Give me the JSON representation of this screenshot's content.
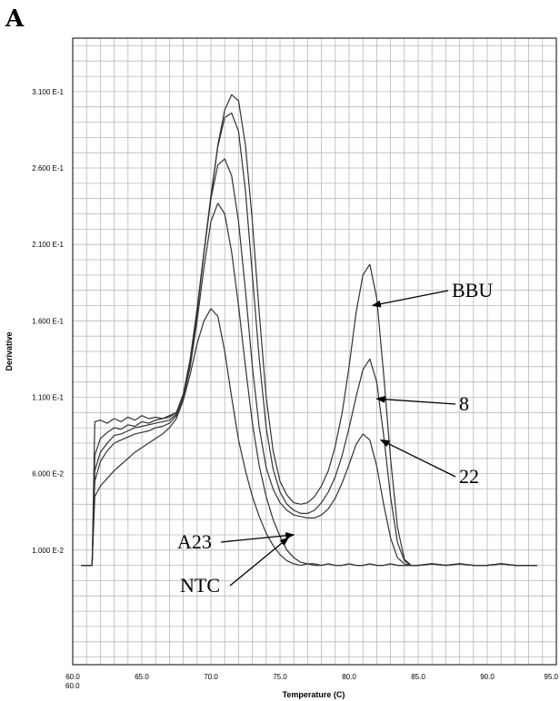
{
  "panel_letter": "A",
  "chart_data": {
    "type": "line",
    "xlabel": "Temperature (C)",
    "ylabel": "Derivative",
    "xlim": [
      60.0,
      95.0
    ],
    "ylim": [
      -0.065,
      0.345
    ],
    "x_ticks": [
      60,
      65,
      70,
      75,
      80,
      85,
      90,
      95
    ],
    "x_tick_labels": [
      "60.0",
      "65.0",
      "70.0",
      "75.0",
      "80.0",
      "85.0",
      "90.0",
      "95.0"
    ],
    "x_min_label": "60.0",
    "y_ticks": [
      0.01,
      0.06,
      0.11,
      0.16,
      0.21,
      0.26,
      0.31
    ],
    "y_tick_labels": [
      "1.000 E-2",
      "6.000 E-2",
      "1.100 E-1",
      "1.600 E-1",
      "2.100 E-1",
      "2.600 E-1",
      "3.100 E-1"
    ],
    "grid": true,
    "x": [
      60.6,
      61.4,
      61.6,
      62.0,
      62.5,
      63.0,
      63.5,
      64.0,
      64.5,
      65.0,
      65.5,
      66.0,
      66.5,
      67.0,
      67.5,
      68.0,
      68.5,
      69.0,
      69.5,
      70.0,
      70.5,
      71.0,
      71.5,
      72.0,
      72.5,
      73.0,
      73.5,
      74.0,
      74.5,
      75.0,
      75.5,
      76.0,
      76.5,
      77.0,
      77.5,
      78.0,
      78.5,
      79.0,
      79.5,
      80.0,
      80.5,
      81.0,
      81.5,
      82.0,
      82.5,
      83.0,
      83.5,
      84.0,
      84.5,
      85.0,
      86.0,
      87.0,
      88.0,
      89.0,
      90.0,
      91.0,
      92.0,
      93.2
    ],
    "series": [
      {
        "values": [
          0.0,
          0.0,
          0.094,
          0.095,
          0.093,
          0.096,
          0.094,
          0.097,
          0.095,
          0.098,
          0.096,
          0.097,
          0.096,
          0.098,
          0.1,
          0.11,
          0.13,
          0.165,
          0.205,
          0.24,
          0.275,
          0.298,
          0.308,
          0.304,
          0.275,
          0.225,
          0.165,
          0.11,
          0.075,
          0.055,
          0.046,
          0.041,
          0.04,
          0.041,
          0.045,
          0.052,
          0.062,
          0.078,
          0.1,
          0.13,
          0.165,
          0.19,
          0.197,
          0.175,
          0.125,
          0.07,
          0.025,
          0.004,
          0.0,
          0.0,
          0.001,
          0.0,
          0.001,
          0.0,
          0.0,
          0.001,
          0.0,
          0.0
        ]
      },
      {
        "values": [
          0.0,
          0.0,
          0.072,
          0.083,
          0.087,
          0.09,
          0.089,
          0.092,
          0.091,
          0.094,
          0.093,
          0.095,
          0.096,
          0.097,
          0.1,
          0.112,
          0.133,
          0.167,
          0.205,
          0.242,
          0.274,
          0.293,
          0.296,
          0.284,
          0.245,
          0.19,
          0.135,
          0.09,
          0.063,
          0.048,
          0.04,
          0.036,
          0.034,
          0.034,
          0.036,
          0.041,
          0.048,
          0.058,
          0.072,
          0.09,
          0.11,
          0.128,
          0.135,
          0.12,
          0.085,
          0.045,
          0.015,
          0.003,
          0.0,
          0.0,
          0.001,
          0.0,
          0.001,
          0.0,
          0.0,
          0.001,
          0.0,
          0.0
        ]
      },
      {
        "values": [
          0.0,
          0.0,
          0.062,
          0.074,
          0.08,
          0.085,
          0.086,
          0.088,
          0.09,
          0.091,
          0.092,
          0.093,
          0.094,
          0.095,
          0.099,
          0.112,
          0.135,
          0.168,
          0.205,
          0.24,
          0.262,
          0.266,
          0.255,
          0.225,
          0.18,
          0.13,
          0.09,
          0.064,
          0.05,
          0.041,
          0.036,
          0.033,
          0.032,
          0.031,
          0.031,
          0.033,
          0.037,
          0.044,
          0.054,
          0.066,
          0.079,
          0.086,
          0.082,
          0.065,
          0.04,
          0.018,
          0.005,
          0.001,
          0.0,
          0.0,
          0.001,
          0.0,
          0.001,
          0.0,
          0.0,
          0.001,
          0.0,
          0.0
        ]
      },
      {
        "values": [
          0.0,
          0.0,
          0.055,
          0.068,
          0.075,
          0.08,
          0.082,
          0.084,
          0.086,
          0.087,
          0.088,
          0.09,
          0.091,
          0.093,
          0.098,
          0.11,
          0.13,
          0.16,
          0.195,
          0.225,
          0.237,
          0.23,
          0.205,
          0.17,
          0.13,
          0.093,
          0.065,
          0.045,
          0.03,
          0.019,
          0.01,
          0.005,
          0.002,
          0.001,
          0.001,
          0.0,
          0.001,
          0.0,
          0.0,
          0.001,
          0.0,
          0.0,
          0.001,
          0.0,
          0.0,
          0.001,
          0.0,
          0.0,
          0.0,
          0.0,
          0.001,
          0.0,
          0.001,
          0.0,
          0.0,
          0.001,
          0.0,
          0.0
        ]
      },
      {
        "values": [
          0.0,
          0.0,
          0.045,
          0.052,
          0.057,
          0.062,
          0.066,
          0.07,
          0.074,
          0.077,
          0.08,
          0.083,
          0.086,
          0.09,
          0.096,
          0.108,
          0.125,
          0.145,
          0.16,
          0.168,
          0.163,
          0.14,
          0.11,
          0.082,
          0.062,
          0.045,
          0.032,
          0.021,
          0.013,
          0.007,
          0.003,
          0.001,
          0.0,
          0.001,
          0.0,
          0.0,
          0.001,
          0.0,
          0.0,
          0.001,
          0.0,
          0.0,
          0.001,
          0.0,
          0.0,
          0.001,
          0.0,
          0.0,
          0.0,
          0.0,
          0.001,
          0.0,
          0.001,
          0.0,
          0.0,
          0.001,
          0.0,
          0.0
        ]
      }
    ],
    "annotations": [
      {
        "text": "BBU",
        "x": 81.7,
        "y": 0.17,
        "side": "right"
      },
      {
        "text": "8",
        "x": 82.0,
        "y": 0.109,
        "side": "right"
      },
      {
        "text": "22",
        "x": 82.3,
        "y": 0.082,
        "side": "right"
      },
      {
        "text": "A23",
        "x": 76.0,
        "y": 0.02,
        "side": "left"
      },
      {
        "text": "NTC",
        "x": 75.6,
        "y": 0.018,
        "side": "left"
      }
    ]
  }
}
